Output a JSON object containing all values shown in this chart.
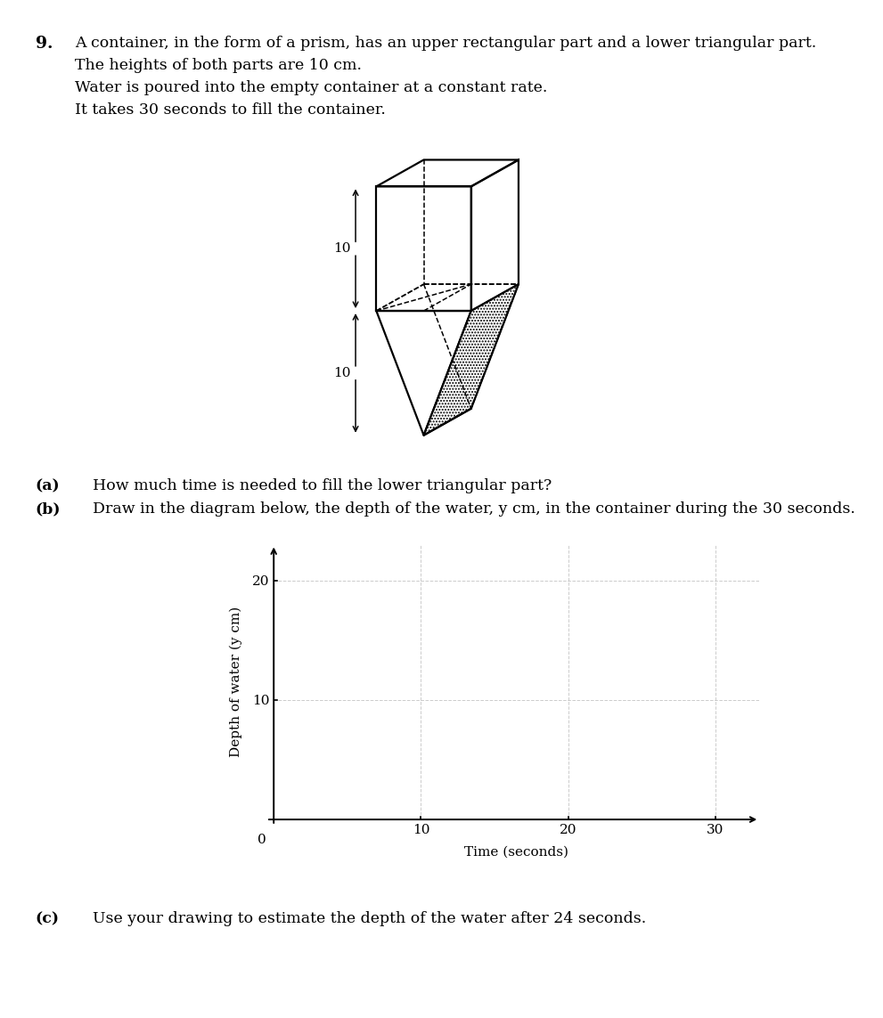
{
  "title_number": "9.",
  "problem_text_lines": [
    "A container, in the form of a prism, has an upper rectangular part and a lower triangular part.",
    "The heights of both parts are 10 cm.",
    "Water is poured into the empty container at a constant rate.",
    "It takes 30 seconds to fill the container."
  ],
  "part_a_label": "(a)",
  "part_a_text": "How much time is needed to fill the lower triangular part?",
  "part_b_label": "(b)",
  "part_b_text": "Draw in the diagram below, the depth of the water, y cm, in the container during the 30 seconds.",
  "part_c_label": "(c)",
  "part_c_text": "Use your drawing to estimate the depth of the water after 24 seconds.",
  "graph_xlabel": "Time (seconds)",
  "graph_ylabel": "Depth of water (y cm)",
  "graph_xticks": [
    0,
    10,
    20,
    30
  ],
  "graph_yticks": [
    0,
    10,
    20
  ],
  "graph_xlim": [
    0,
    33
  ],
  "graph_ylim": [
    0,
    23
  ],
  "background_color": "#ffffff",
  "text_color": "#000000",
  "font_size_body": 12.5,
  "font_size_axis_label": 11,
  "font_size_tick": 11,
  "dim_label_10": "10"
}
